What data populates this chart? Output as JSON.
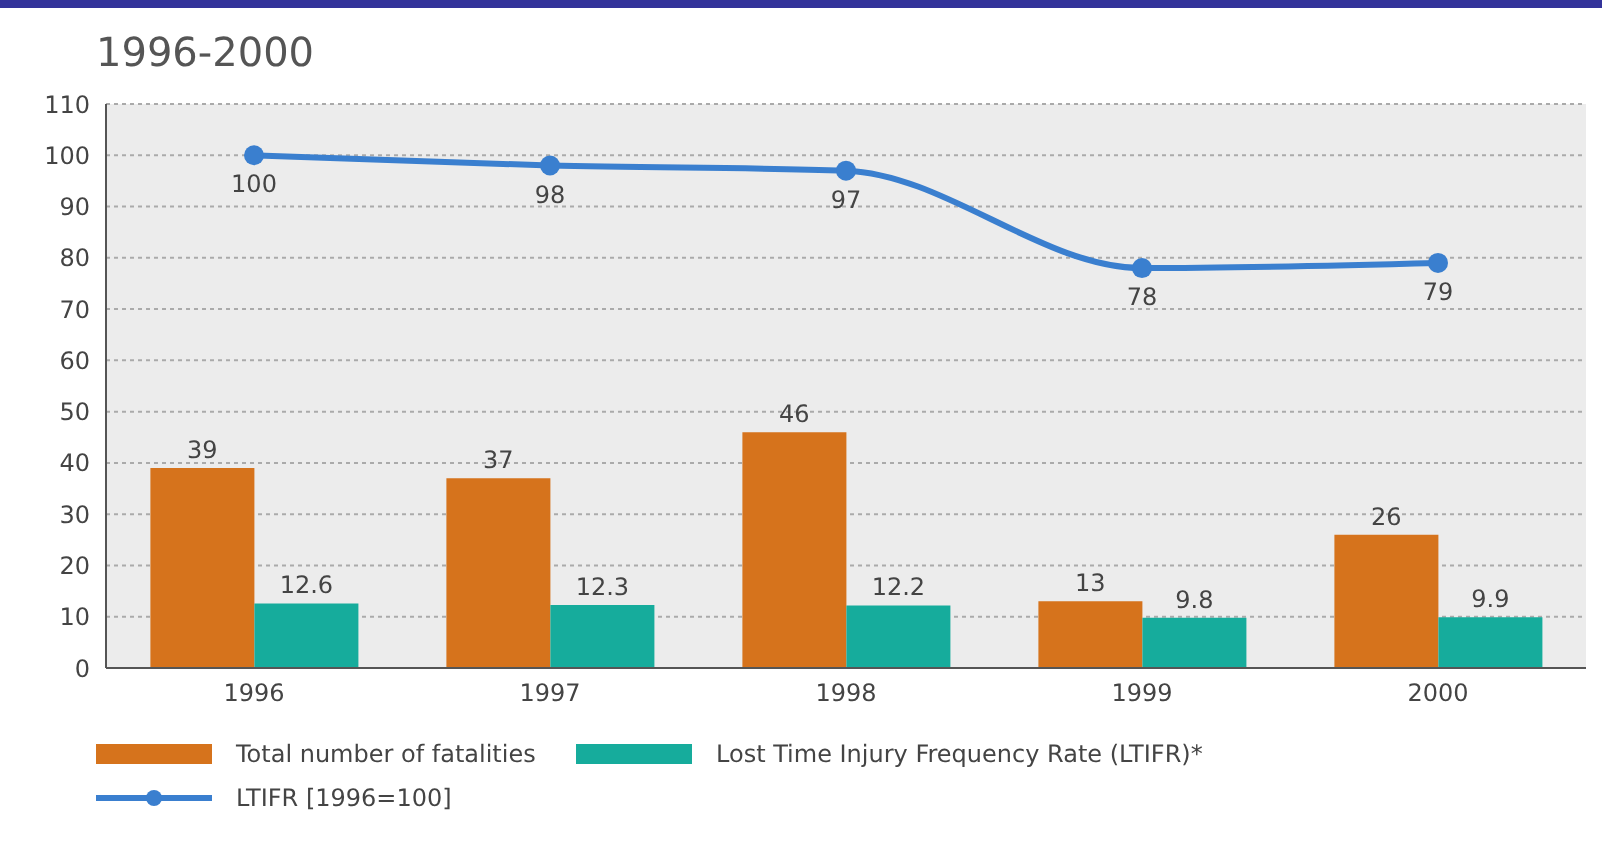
{
  "chart_data": {
    "type": "bar",
    "title": "1996-2000",
    "categories": [
      "1996",
      "1997",
      "1998",
      "1999",
      "2000"
    ],
    "series": [
      {
        "name": "Total number of fatalities",
        "color": "#d6731c",
        "values": [
          39,
          37,
          46,
          13,
          26
        ]
      },
      {
        "name": "Lost Time Injury Frequency Rate (LTIFR)*",
        "color": "#16ac9c",
        "values": [
          12.6,
          12.3,
          12.2,
          9.8,
          9.9
        ]
      },
      {
        "name": "LTIFR [1996=100]",
        "type": "line",
        "color": "#3a7fcf",
        "values": [
          100,
          98,
          97,
          78,
          79
        ]
      }
    ],
    "ylim": [
      0,
      110
    ],
    "yticks": [
      0,
      10,
      20,
      30,
      40,
      50,
      60,
      70,
      80,
      90,
      100,
      110
    ],
    "grid": "y",
    "legend": "bottom",
    "marker": "circle",
    "data_labels": true
  }
}
